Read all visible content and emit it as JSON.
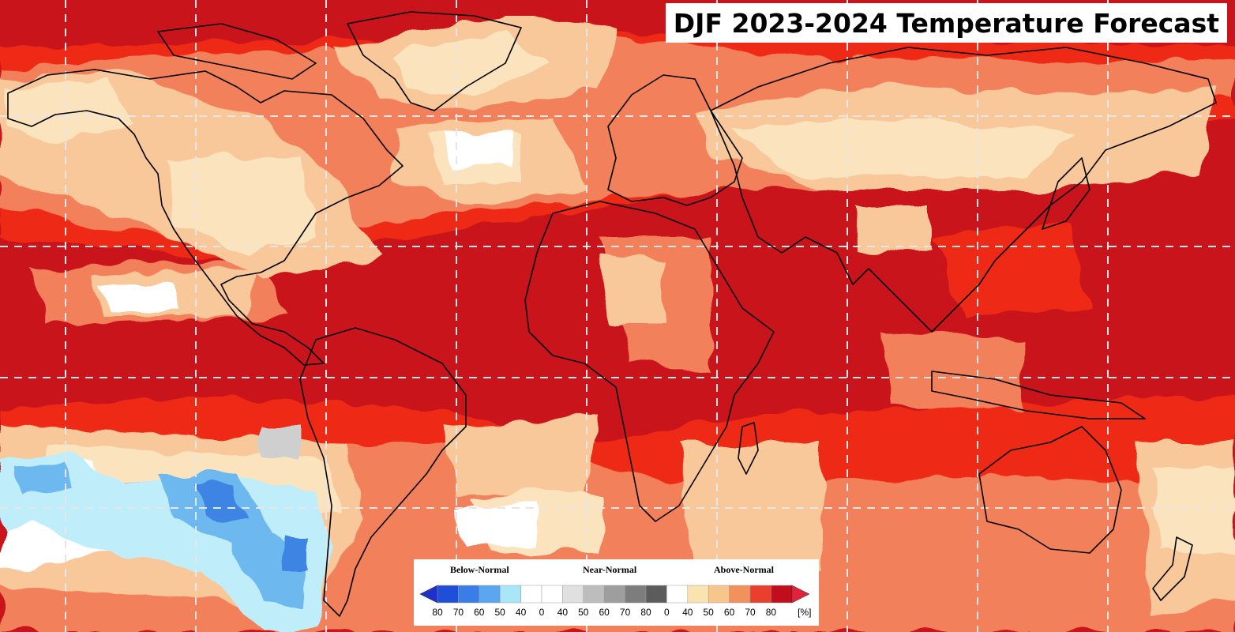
{
  "title": "DJF 2023-2024 Temperature Forecast",
  "legend": {
    "categories": [
      "Below-Normal",
      "Near-Normal",
      "Above-Normal"
    ],
    "tick_labels": [
      "80",
      "70",
      "60",
      "50",
      "40",
      "0",
      "40",
      "50",
      "60",
      "70",
      "80",
      "0",
      "40",
      "50",
      "60",
      "70",
      "80"
    ],
    "unit": "[%]",
    "below_colors": [
      "#1e4fd8",
      "#3a7de8",
      "#5aa6f0",
      "#a9e6f7"
    ],
    "near_colors": [
      "#ffffff",
      "#ffffff",
      "#e0e0e0",
      "#bdbdbd",
      "#9e9e9e",
      "#7d7d7d",
      "#5c5c5c"
    ],
    "above_colors": [
      "#ffffff",
      "#fbe3b0",
      "#f9c68a",
      "#f2915c",
      "#e8402c",
      "#c20d1d"
    ]
  },
  "colors": {
    "above_80": "#c9141c",
    "above_70": "#ee2a18",
    "above_60": "#f2805a",
    "above_50": "#f8c79a",
    "above_40": "#fbe3bd",
    "near_blank": "#ffffff",
    "near_gray": "#cfcfcf",
    "below_50": "#bfeefa",
    "below_60": "#6db8ee",
    "below_70": "#3c84e3",
    "gridline": "#e6e6e6",
    "coastline": "#000000"
  }
}
